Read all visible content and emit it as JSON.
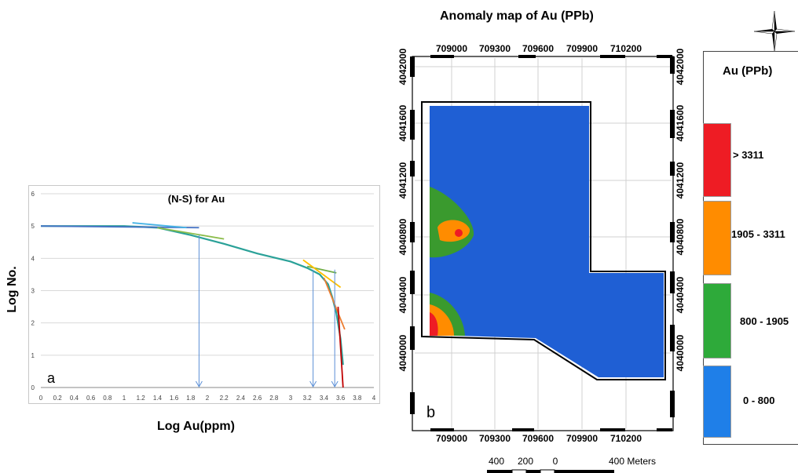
{
  "chart_data": [
    {
      "type": "line",
      "title": "(N-S) for Au",
      "xlabel": "Log Au(ppm)",
      "ylabel": "Log No.",
      "panel_label": "a",
      "xlim": [
        0,
        4
      ],
      "ylim": [
        0,
        6
      ],
      "x_ticks": [
        "0",
        "0.2",
        "0.4",
        "0.6",
        "0.8",
        "1",
        "1.2",
        "1.4",
        "1.6",
        "1.8",
        "2",
        "2.2",
        "2.4",
        "2.6",
        "2.8",
        "3",
        "3.2",
        "3.4",
        "3.6",
        "3.8",
        "4"
      ],
      "y_ticks": [
        "0",
        "1",
        "2",
        "3",
        "4",
        "5",
        "6"
      ],
      "grid": "horizontal",
      "series": [
        {
          "color": "#2aa198",
          "x": [
            0,
            1.0,
            1.4,
            1.8,
            2.2,
            2.6,
            3.0,
            3.2,
            3.35,
            3.45,
            3.5,
            3.55,
            3.6,
            3.63
          ],
          "y": [
            5.0,
            5.0,
            4.95,
            4.72,
            4.45,
            4.15,
            3.9,
            3.7,
            3.5,
            3.2,
            2.8,
            2.3,
            1.5,
            0.7
          ]
        },
        {
          "color": "#4472c4",
          "x": [
            0,
            1.9
          ],
          "y": [
            5.0,
            4.95
          ]
        },
        {
          "color": "#46b4e6",
          "x": [
            1.1,
            1.75
          ],
          "y": [
            5.1,
            4.95
          ]
        },
        {
          "color": "#8bbc4a",
          "x": [
            1.4,
            2.2
          ],
          "y": [
            4.95,
            4.6
          ]
        },
        {
          "color": "#70ad47",
          "x": [
            3.2,
            3.55
          ],
          "y": [
            3.75,
            3.55
          ]
        },
        {
          "color": "#ffc000",
          "x": [
            3.15,
            3.6
          ],
          "y": [
            3.95,
            3.1
          ]
        },
        {
          "color": "#ed7d31",
          "x": [
            3.4,
            3.65
          ],
          "y": [
            3.4,
            1.8
          ]
        },
        {
          "color": "#c00000",
          "x": [
            3.57,
            3.63
          ],
          "y": [
            2.5,
            0
          ]
        }
      ],
      "threshold_arrows_x": [
        1.9,
        3.27,
        3.53
      ]
    },
    {
      "type": "heatmap",
      "title": "Anomaly map of Au (PPb)",
      "panel_label": "b",
      "x_ticks": [
        "709000",
        "709300",
        "709600",
        "709900",
        "710200"
      ],
      "y_ticks": [
        "4042000",
        "4041600",
        "4041200",
        "4040800",
        "4040400",
        "4040000"
      ],
      "legend_title": "Au (PPb)",
      "legend": [
        {
          "label": "> 3311",
          "color": "#ee1c24"
        },
        {
          "label": "1905 - 3311",
          "color": "#ff8c00"
        },
        {
          "label": "800 - 1905",
          "color": "#2eaa3a"
        },
        {
          "label": "0 - 800",
          "color": "#1f7fe8"
        }
      ],
      "scale_bar_labels": [
        "400",
        "200",
        "0",
        "400 Meters"
      ]
    }
  ]
}
